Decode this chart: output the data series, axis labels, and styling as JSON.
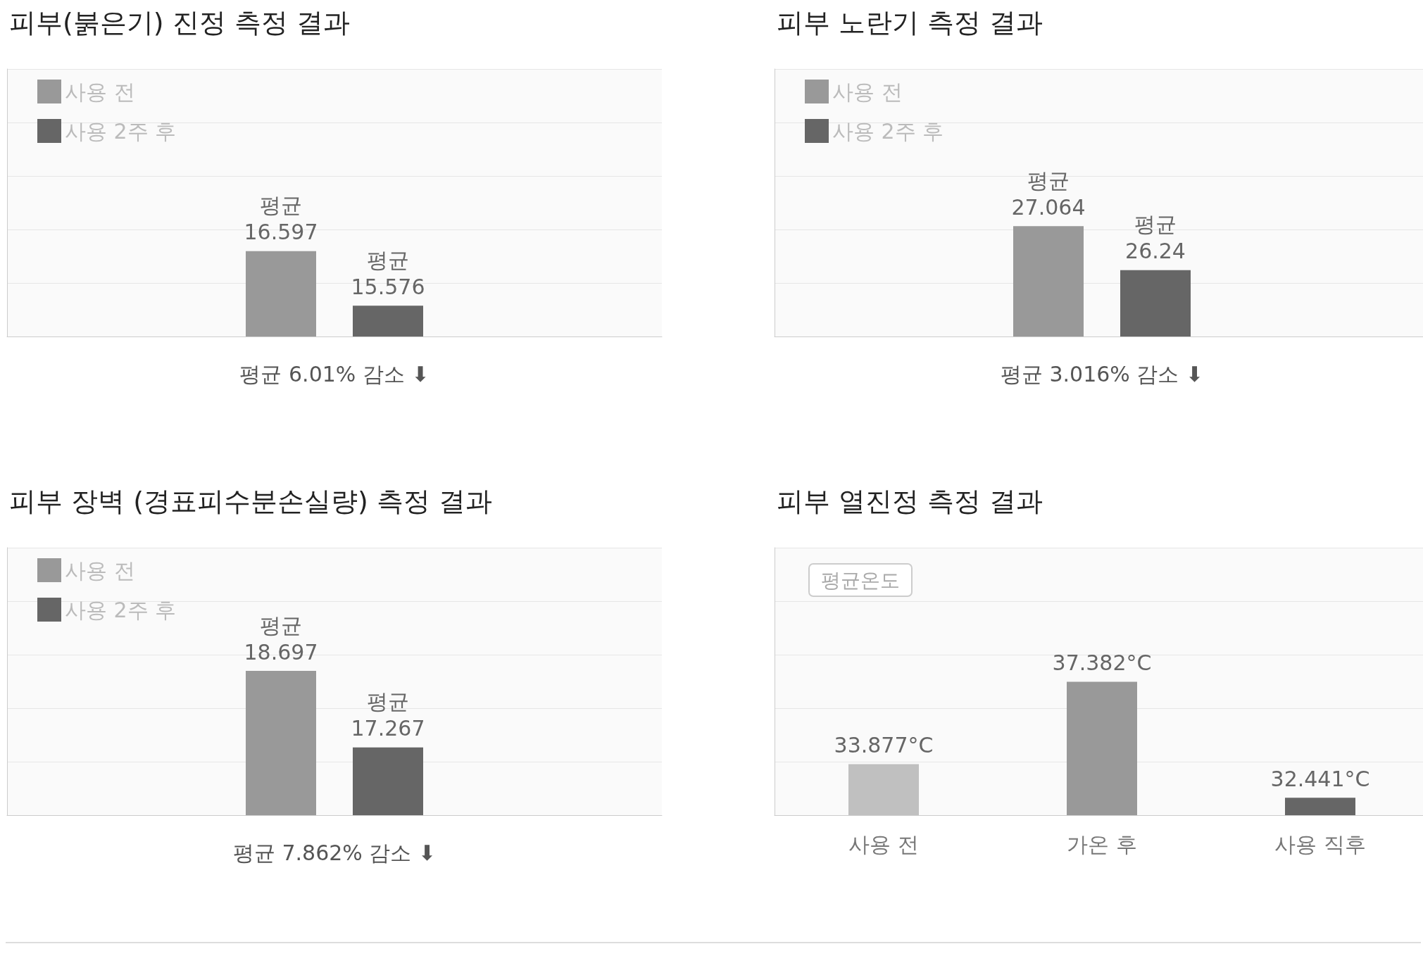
{
  "chart_data": [
    {
      "type": "bar",
      "title": "피부(붉은기) 진정 측정 결과",
      "xlabel": "평균 6.01% 감소 ⬇",
      "categories": [
        null
      ],
      "legend": "top left",
      "grid": "y",
      "ylim": [
        15,
        20
      ],
      "yticks": [
        {
          "value": 15,
          "label": null
        },
        {
          "value": 16,
          "label": null
        },
        {
          "value": 17,
          "label": null
        },
        {
          "value": 18,
          "label": null
        },
        {
          "value": 19,
          "label": null
        },
        {
          "value": 20,
          "label": null
        }
      ],
      "tick_labels": false,
      "series": [
        {
          "name": "사용 전",
          "color": "#999999",
          "values": [
            16.597
          ],
          "value_labels": [
            "평균\n16.597"
          ]
        },
        {
          "name": "사용 2주 후",
          "color": "#666666",
          "values": [
            15.576
          ],
          "value_labels": [
            "평균\n15.576"
          ]
        }
      ]
    },
    {
      "type": "bar",
      "title": "피부 노란기 측정 결과",
      "xlabel": "평균 3.016% 감소 ⬇",
      "categories": [
        null
      ],
      "legend": "top left",
      "grid": "y",
      "ylim": [
        25,
        30
      ],
      "yticks": [
        {
          "value": 25,
          "label": null
        },
        {
          "value": 26,
          "label": null
        },
        {
          "value": 27,
          "label": null
        },
        {
          "value": 28,
          "label": null
        },
        {
          "value": 29,
          "label": null
        },
        {
          "value": 30,
          "label": null
        }
      ],
      "tick_labels": false,
      "series": [
        {
          "name": "사용 전",
          "color": "#999999",
          "values": [
            27.064
          ],
          "value_labels": [
            "평균\n27.064"
          ]
        },
        {
          "name": "사용 2주 후",
          "color": "#666666",
          "values": [
            26.24
          ],
          "value_labels": [
            "평균\n26.24"
          ]
        }
      ]
    },
    {
      "type": "bar",
      "title": "피부 장벽 (경표피수분손실량) 측정 결과",
      "xlabel": "평균 7.862% 감소 ⬇",
      "categories": [
        null
      ],
      "legend": "top left",
      "grid": "y",
      "ylim": [
        16,
        21
      ],
      "yticks": [
        {
          "value": 16,
          "label": null
        },
        {
          "value": 17,
          "label": null
        },
        {
          "value": 18,
          "label": null
        },
        {
          "value": 19,
          "label": null
        },
        {
          "value": 20,
          "label": null
        },
        {
          "value": 21,
          "label": null
        }
      ],
      "tick_labels": false,
      "series": [
        {
          "name": "사용 전",
          "color": "#999999",
          "values": [
            18.697
          ],
          "value_labels": [
            "평균\n18.697"
          ]
        },
        {
          "name": "사용 2주 후",
          "color": "#666666",
          "values": [
            17.267
          ],
          "value_labels": [
            "평균\n17.267"
          ]
        }
      ]
    },
    {
      "type": "bar",
      "title": "피부 열진정 측정 결과",
      "annotations": [
        "평균온도"
      ],
      "categories": [
        "사용 전",
        "가온 후",
        "사용 직후"
      ],
      "grid": "y",
      "ylim": [
        31.7,
        43.1
      ],
      "yticks": [
        {
          "value": 31.7,
          "label": null
        },
        {
          "value": 33.98,
          "label": null
        },
        {
          "value": 36.26,
          "label": null
        },
        {
          "value": 38.54,
          "label": null
        },
        {
          "value": 40.82,
          "label": null
        },
        {
          "value": 43.1,
          "label": null
        }
      ],
      "tick_labels": "x",
      "series": [
        {
          "colors": [
            "#c0c0c0",
            "#999999",
            "#666666"
          ],
          "values": [
            33.877,
            37.382,
            32.441
          ],
          "value_labels": [
            "33.877°C",
            "37.382°C",
            "32.441°C"
          ]
        }
      ]
    }
  ]
}
